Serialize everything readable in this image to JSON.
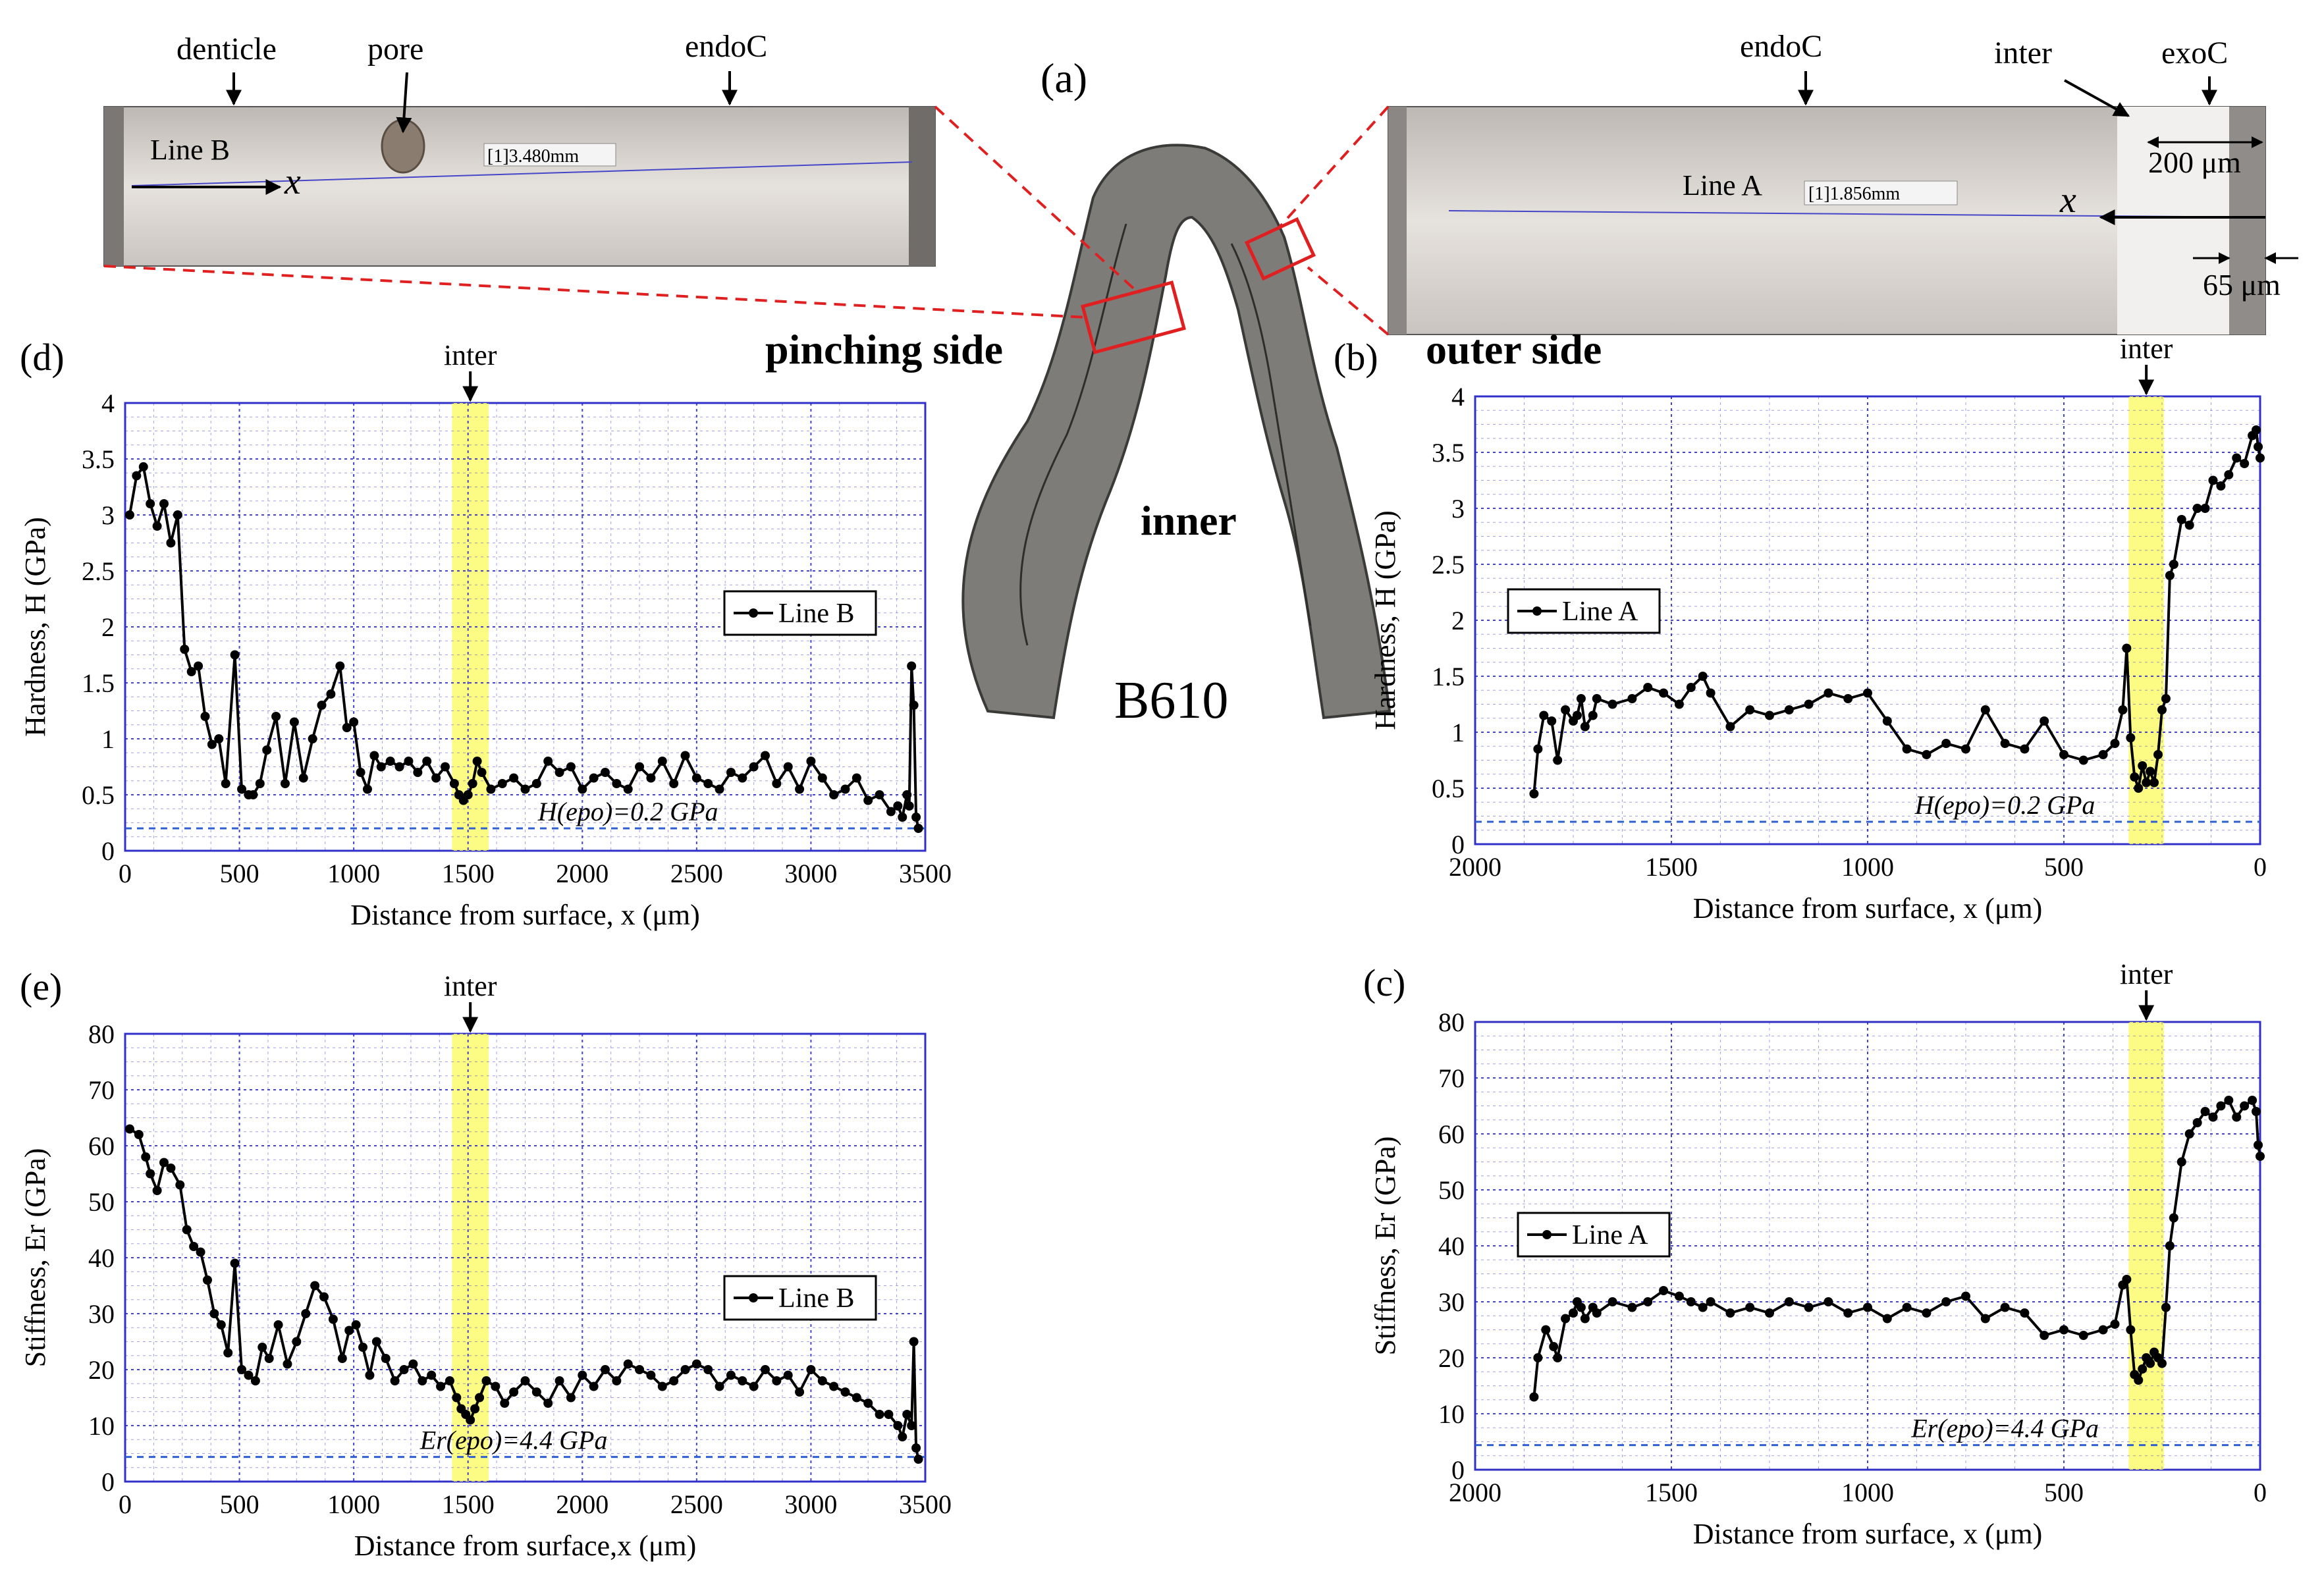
{
  "figure": {
    "panel_a": "(a)",
    "sample_label": "B610",
    "pinching_side": "pinching  side",
    "outer_side": "outer side",
    "inner": "inner",
    "denticle": "denticle",
    "pore": "pore",
    "endoC_left": "endoC",
    "endoC_right": "endoC",
    "inter_top": "inter",
    "exoC": "exoC",
    "lineB": "Line B",
    "lineA": "Line A",
    "scale_b": "[1]3.480mm",
    "scale_a": "[1]1.856mm",
    "dim_200": "200 μm",
    "dim_65": "65 μm",
    "x_glyph": "x",
    "colors": {
      "series": "#000000",
      "grid": "#3030c8",
      "highlight": "#fbfb6e",
      "ref": "#3060d0",
      "zoom_box": "#e02020"
    }
  },
  "chart_data": [
    {
      "id": "d",
      "panel": "(d)",
      "type": "line",
      "ylabel": "Hardness, H (GPa)",
      "xlabel": "Distance from surface, x (μm)",
      "xlim": [
        0,
        3500
      ],
      "ylim": [
        0,
        4
      ],
      "xticks": [
        0,
        500,
        1000,
        1500,
        2000,
        2500,
        3000,
        3500
      ],
      "yticks": [
        0,
        0.5,
        1,
        1.5,
        2,
        2.5,
        3,
        3.5,
        4
      ],
      "yminor": 4,
      "xminor": 4,
      "ref_value": 0.2,
      "ref_label": "H(epo)=0.2 GPa",
      "highlight": [
        1430,
        1590
      ],
      "highlight_label": "inter",
      "legend": "Line B",
      "legend_pos": "right",
      "series": [
        {
          "name": "Line B",
          "x": [
            20,
            50,
            80,
            110,
            140,
            170,
            200,
            230,
            260,
            290,
            320,
            350,
            380,
            410,
            440,
            480,
            510,
            540,
            560,
            590,
            620,
            660,
            700,
            740,
            780,
            820,
            860,
            900,
            940,
            970,
            1000,
            1030,
            1060,
            1090,
            1120,
            1160,
            1200,
            1240,
            1280,
            1320,
            1360,
            1400,
            1440,
            1460,
            1480,
            1500,
            1520,
            1540,
            1560,
            1600,
            1650,
            1700,
            1750,
            1800,
            1850,
            1900,
            1950,
            2000,
            2050,
            2100,
            2150,
            2200,
            2250,
            2300,
            2350,
            2400,
            2450,
            2500,
            2550,
            2600,
            2650,
            2700,
            2750,
            2800,
            2850,
            2900,
            2950,
            3000,
            3050,
            3100,
            3150,
            3200,
            3250,
            3300,
            3350,
            3380,
            3400,
            3420,
            3430,
            3440,
            3450,
            3460,
            3470
          ],
          "values": [
            3.0,
            3.35,
            3.43,
            3.1,
            2.9,
            3.1,
            2.75,
            3.0,
            1.8,
            1.6,
            1.65,
            1.2,
            0.95,
            1.0,
            0.6,
            1.75,
            0.55,
            0.5,
            0.5,
            0.6,
            0.9,
            1.2,
            0.6,
            1.15,
            0.65,
            1.0,
            1.3,
            1.4,
            1.65,
            1.1,
            1.15,
            0.7,
            0.55,
            0.85,
            0.75,
            0.8,
            0.75,
            0.8,
            0.7,
            0.8,
            0.65,
            0.75,
            0.6,
            0.5,
            0.45,
            0.5,
            0.6,
            0.8,
            0.7,
            0.55,
            0.6,
            0.65,
            0.55,
            0.6,
            0.8,
            0.7,
            0.75,
            0.55,
            0.65,
            0.7,
            0.6,
            0.55,
            0.75,
            0.65,
            0.8,
            0.6,
            0.85,
            0.65,
            0.6,
            0.55,
            0.7,
            0.65,
            0.75,
            0.85,
            0.6,
            0.75,
            0.55,
            0.8,
            0.65,
            0.5,
            0.55,
            0.65,
            0.45,
            0.5,
            0.35,
            0.4,
            0.3,
            0.5,
            0.4,
            1.65,
            1.3,
            0.3,
            0.2
          ]
        }
      ]
    },
    {
      "id": "b",
      "panel": "(b)",
      "type": "line",
      "ylabel": "Hardness, H (GPa)",
      "xlabel": "Distance from surface, x (μm)",
      "xlim": [
        2000,
        0
      ],
      "ylim": [
        0,
        4
      ],
      "xticks": [
        2000,
        1500,
        1000,
        500,
        0
      ],
      "yticks": [
        0,
        0.5,
        1,
        1.5,
        2,
        2.5,
        3,
        3.5,
        4
      ],
      "yminor": 4,
      "xminor": 4,
      "ref_value": 0.2,
      "ref_label": "H(epo)=0.2 GPa",
      "highlight": [
        245,
        335
      ],
      "highlight_label": "inter",
      "legend": "Line A",
      "legend_pos": "left",
      "series": [
        {
          "name": "Line A",
          "x": [
            1850,
            1840,
            1825,
            1805,
            1790,
            1770,
            1750,
            1740,
            1730,
            1720,
            1700,
            1690,
            1650,
            1600,
            1560,
            1520,
            1480,
            1450,
            1420,
            1400,
            1350,
            1300,
            1250,
            1200,
            1150,
            1100,
            1050,
            1000,
            950,
            900,
            850,
            800,
            750,
            700,
            650,
            600,
            550,
            500,
            450,
            400,
            370,
            350,
            340,
            330,
            320,
            310,
            300,
            290,
            280,
            270,
            260,
            250,
            240,
            230,
            220,
            200,
            180,
            160,
            140,
            120,
            100,
            80,
            60,
            40,
            20,
            10,
            5,
            0
          ],
          "values": [
            0.45,
            0.85,
            1.15,
            1.1,
            0.75,
            1.2,
            1.1,
            1.15,
            1.3,
            1.05,
            1.15,
            1.3,
            1.25,
            1.3,
            1.4,
            1.35,
            1.25,
            1.4,
            1.5,
            1.35,
            1.05,
            1.2,
            1.15,
            1.2,
            1.25,
            1.35,
            1.3,
            1.35,
            1.1,
            0.85,
            0.8,
            0.9,
            0.85,
            1.2,
            0.9,
            0.85,
            1.1,
            0.8,
            0.75,
            0.8,
            0.9,
            1.2,
            1.75,
            0.95,
            0.6,
            0.5,
            0.7,
            0.55,
            0.65,
            0.55,
            0.8,
            1.2,
            1.3,
            2.4,
            2.5,
            2.9,
            2.85,
            3.0,
            3.0,
            3.25,
            3.2,
            3.3,
            3.45,
            3.4,
            3.65,
            3.7,
            3.55,
            3.45
          ]
        }
      ]
    },
    {
      "id": "e",
      "panel": "(e)",
      "type": "line",
      "ylabel": "Stiffness, Er (GPa)",
      "xlabel": "Distance from surface,x (μm)",
      "xlim": [
        0,
        3500
      ],
      "ylim": [
        0,
        80
      ],
      "xticks": [
        0,
        500,
        1000,
        1500,
        2000,
        2500,
        3000,
        3500
      ],
      "yticks": [
        0,
        10,
        20,
        30,
        40,
        50,
        60,
        70,
        80
      ],
      "yminor": 4,
      "xminor": 4,
      "ref_value": 4.4,
      "ref_label": "Er(epo)=4.4 GPa",
      "highlight": [
        1430,
        1590
      ],
      "highlight_label": "inter",
      "legend": "Line B",
      "legend_pos": "right",
      "series": [
        {
          "name": "Line B",
          "x": [
            20,
            60,
            90,
            110,
            140,
            170,
            200,
            240,
            270,
            300,
            330,
            360,
            390,
            420,
            450,
            480,
            510,
            540,
            570,
            600,
            630,
            670,
            710,
            750,
            790,
            830,
            870,
            910,
            950,
            980,
            1010,
            1040,
            1070,
            1100,
            1140,
            1180,
            1220,
            1260,
            1300,
            1340,
            1380,
            1420,
            1450,
            1470,
            1490,
            1510,
            1530,
            1550,
            1580,
            1620,
            1660,
            1700,
            1750,
            1800,
            1850,
            1900,
            1950,
            2000,
            2050,
            2100,
            2150,
            2200,
            2250,
            2300,
            2350,
            2400,
            2450,
            2500,
            2550,
            2600,
            2650,
            2700,
            2750,
            2800,
            2850,
            2900,
            2950,
            3000,
            3050,
            3100,
            3150,
            3200,
            3250,
            3300,
            3340,
            3380,
            3400,
            3420,
            3440,
            3450,
            3460,
            3470
          ],
          "values": [
            63,
            62,
            58,
            55,
            52,
            57,
            56,
            53,
            45,
            42,
            41,
            36,
            30,
            28,
            23,
            39,
            20,
            19,
            18,
            24,
            22,
            28,
            21,
            25,
            30,
            35,
            33,
            29,
            22,
            27,
            28,
            24,
            19,
            25,
            22,
            18,
            20,
            21,
            18,
            19,
            17,
            18,
            15,
            13,
            12,
            11,
            13,
            15,
            18,
            17,
            14,
            16,
            18,
            16,
            14,
            18,
            15,
            19,
            17,
            20,
            18,
            21,
            20,
            19,
            17,
            18,
            20,
            21,
            20,
            17,
            19,
            18,
            17,
            20,
            18,
            19,
            16,
            20,
            18,
            17,
            16,
            15,
            14,
            12,
            12,
            10,
            8,
            12,
            10,
            25,
            6,
            4
          ]
        }
      ]
    },
    {
      "id": "c",
      "panel": "(c)",
      "type": "line",
      "ylabel": "Stiffness, Er (GPa)",
      "xlabel": "Distance from surface, x (μm)",
      "xlim": [
        2000,
        0
      ],
      "ylim": [
        0,
        80
      ],
      "xticks": [
        2000,
        1500,
        1000,
        500,
        0
      ],
      "yticks": [
        0,
        10,
        20,
        30,
        40,
        50,
        60,
        70,
        80
      ],
      "yminor": 4,
      "xminor": 4,
      "ref_value": 4.4,
      "ref_label": "Er(epo)=4.4 GPa",
      "highlight": [
        245,
        335
      ],
      "highlight_label": "inter",
      "legend": "Line A",
      "legend_pos": "left",
      "series": [
        {
          "name": "Line A",
          "x": [
            1850,
            1840,
            1820,
            1800,
            1790,
            1770,
            1750,
            1740,
            1730,
            1720,
            1700,
            1690,
            1650,
            1600,
            1560,
            1520,
            1480,
            1450,
            1420,
            1400,
            1350,
            1300,
            1250,
            1200,
            1150,
            1100,
            1050,
            1000,
            950,
            900,
            850,
            800,
            750,
            700,
            650,
            600,
            550,
            500,
            450,
            400,
            370,
            350,
            340,
            330,
            320,
            310,
            300,
            290,
            280,
            270,
            260,
            250,
            240,
            230,
            220,
            200,
            180,
            160,
            140,
            120,
            100,
            80,
            60,
            40,
            20,
            10,
            5,
            0
          ],
          "values": [
            13,
            20,
            25,
            22,
            20,
            27,
            28,
            30,
            29,
            27,
            29,
            28,
            30,
            29,
            30,
            32,
            31,
            30,
            29,
            30,
            28,
            29,
            28,
            30,
            29,
            30,
            28,
            29,
            27,
            29,
            28,
            30,
            31,
            27,
            29,
            28,
            24,
            25,
            24,
            25,
            26,
            33,
            34,
            25,
            17,
            16,
            18,
            20,
            19,
            21,
            20,
            19,
            29,
            40,
            45,
            55,
            60,
            62,
            64,
            63,
            65,
            66,
            63,
            65,
            66,
            64,
            58,
            56
          ]
        }
      ]
    }
  ]
}
